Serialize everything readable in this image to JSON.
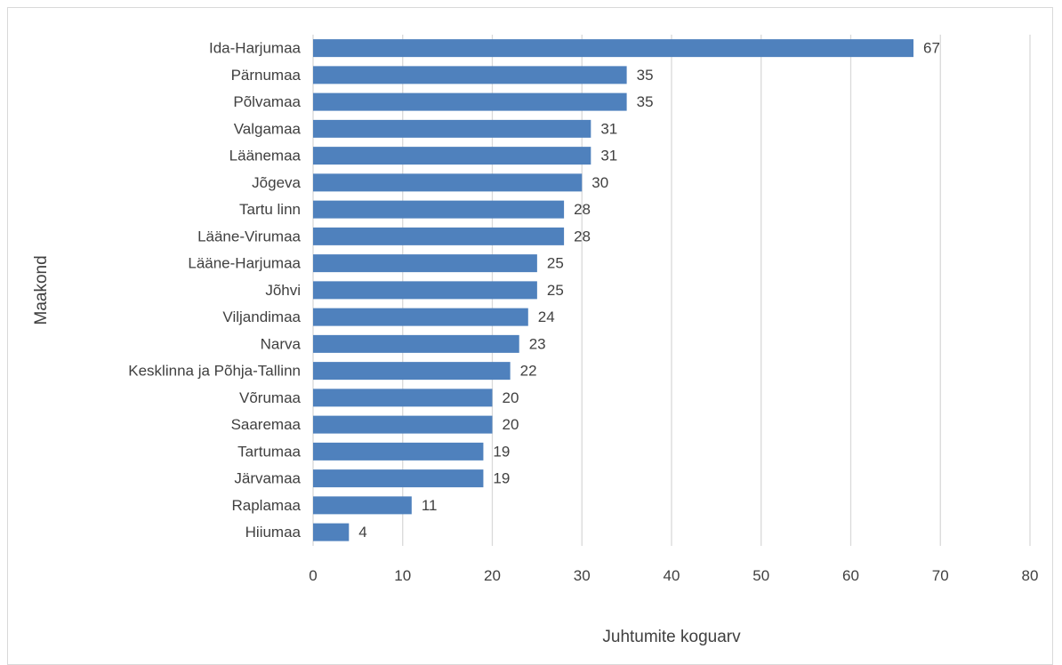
{
  "chart_data": {
    "type": "bar",
    "orientation": "horizontal",
    "categories": [
      "Ida-Harjumaa",
      "Pärnumaa",
      "Põlvamaa",
      "Valgamaa",
      "Läänemaa",
      "Jõgeva",
      "Tartu linn",
      "Lääne-Virumaa",
      "Lääne-Harjumaa",
      "Jõhvi",
      "Viljandimaa",
      "Narva",
      "Kesklinna ja Põhja-Tallinn",
      "Võrumaa",
      "Saaremaa",
      "Tartumaa",
      "Järvamaa",
      "Raplamaa",
      "Hiiumaa"
    ],
    "values": [
      67,
      35,
      35,
      31,
      31,
      30,
      28,
      28,
      25,
      25,
      24,
      23,
      22,
      20,
      20,
      19,
      19,
      11,
      4
    ],
    "xlabel": "Juhtumite koguarv",
    "ylabel": "Maakond",
    "xlim": [
      0,
      80
    ],
    "xticks": [
      0,
      10,
      20,
      30,
      40,
      50,
      60,
      70,
      80
    ],
    "data_labels": true,
    "grid": "vertical",
    "legend": "none",
    "bar_color": "#4f81bd",
    "grid_color": "#d9d9d9",
    "text_color": "#404040"
  }
}
